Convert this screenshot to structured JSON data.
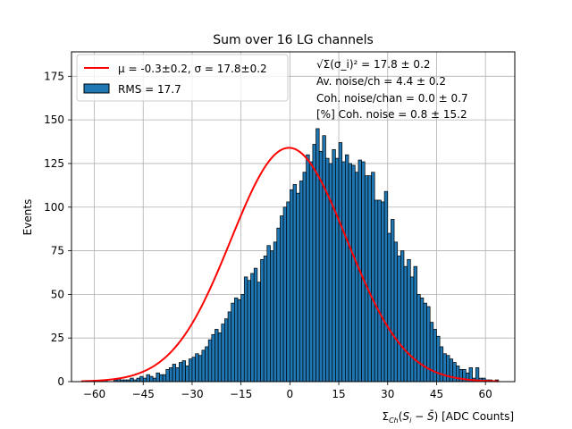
{
  "chart_data": {
    "type": "bar",
    "title": "Sum over 16 LG channels",
    "xlabel": "Σ_Ch(S_i − S̄) [ADC Counts]",
    "ylabel": "Events",
    "xlim": [
      -67,
      69
    ],
    "ylim": [
      0,
      189
    ],
    "xticks": [
      -60,
      -45,
      -30,
      -15,
      0,
      15,
      30,
      45,
      60
    ],
    "xtick_labels": [
      "−60",
      "−45",
      "−30",
      "−15",
      "0",
      "15",
      "30",
      "45",
      "60"
    ],
    "yticks": [
      0,
      25,
      50,
      75,
      100,
      125,
      150,
      175
    ],
    "ytick_labels": [
      "0",
      "25",
      "50",
      "75",
      "100",
      "125",
      "150",
      "175"
    ],
    "grid": true,
    "legend_position": "top-left",
    "colors": {
      "bar": "#1f77b4",
      "bar_edge": "#000000",
      "fit": "#ff0000",
      "grid": "#b0b0b0"
    },
    "histogram": {
      "name": "RMS = 17.7",
      "bin_start": -61,
      "bin_width": 1,
      "counts": [
        0,
        0,
        0,
        0,
        1,
        0,
        0,
        1,
        2,
        1,
        1,
        1,
        2,
        1,
        2,
        3,
        2,
        4,
        3,
        2,
        5,
        4,
        4,
        7,
        8,
        10,
        8,
        11,
        12,
        9,
        13,
        14,
        16,
        15,
        18,
        20,
        24,
        27,
        30,
        28,
        33,
        36,
        40,
        45,
        48,
        47,
        50,
        60,
        58,
        62,
        65,
        57,
        70,
        72,
        78,
        75,
        80,
        88,
        95,
        100,
        103,
        110,
        113,
        108,
        115,
        120,
        130,
        126,
        136,
        145,
        132,
        141,
        128,
        125,
        133,
        128,
        137,
        126,
        130,
        125,
        124,
        120,
        127,
        126,
        118,
        118,
        120,
        104,
        104,
        103,
        109,
        85,
        93,
        80,
        72,
        75,
        66,
        70,
        60,
        66,
        50,
        48,
        45,
        43,
        34,
        30,
        26,
        20,
        16,
        15,
        13,
        11,
        9,
        7,
        7,
        5,
        8,
        2,
        8,
        2,
        2,
        1,
        1,
        0,
        1,
        0,
        0
      ]
    },
    "fit": {
      "name": "μ = -0.3±0.2, σ = 17.8±0.2",
      "mu": -0.3,
      "sigma": 17.8,
      "amplitude": 134,
      "x_range": [
        -64,
        64
      ]
    },
    "legend": [
      {
        "label": "μ = -0.3±0.2, σ = 17.8±0.2",
        "kind": "line"
      },
      {
        "label": "RMS = 17.7",
        "kind": "patch"
      }
    ],
    "annotations": [
      "√Σ(σ_i)² = 17.8 ± 0.2",
      "Av. noise/ch = 4.4 ± 0.2",
      "Coh. noise/chan = 0.0 ± 0.7",
      "[%] Coh. noise = 0.8 ± 15.2"
    ]
  }
}
